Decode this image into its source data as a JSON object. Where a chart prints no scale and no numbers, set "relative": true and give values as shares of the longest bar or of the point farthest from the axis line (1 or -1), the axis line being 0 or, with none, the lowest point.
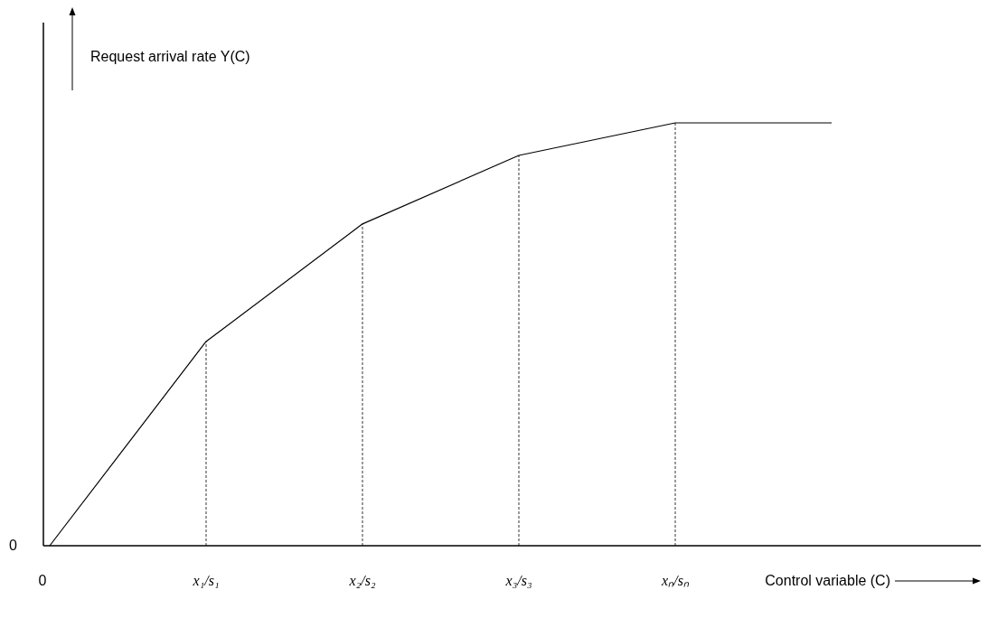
{
  "chart_data": {
    "type": "line",
    "relative": true,
    "xlabel": "Control variable (C)",
    "ylabel": "Request arrival rate Y(C)",
    "categories": [
      "0",
      "x₁/s₁",
      "x₂/s₂",
      "x₃/s₃",
      "xₙ/sₙ",
      null
    ],
    "series": [
      {
        "color": "#000000",
        "values": [
          0,
          0.483,
          0.761,
          0.923,
          1,
          1
        ]
      }
    ],
    "ref_lines": [
      {
        "axis": "x",
        "value": "x₁/s₁",
        "line_style": "dashed"
      },
      {
        "axis": "x",
        "value": "x₂/s₂",
        "line_style": "dashed"
      },
      {
        "axis": "x",
        "value": "x₃/s₃",
        "line_style": "dashed"
      },
      {
        "axis": "x",
        "value": "xₙ/sₙ",
        "line_style": "dashed"
      }
    ],
    "annotations": [
      "0"
    ],
    "marker": "none",
    "line_style": "solid"
  }
}
